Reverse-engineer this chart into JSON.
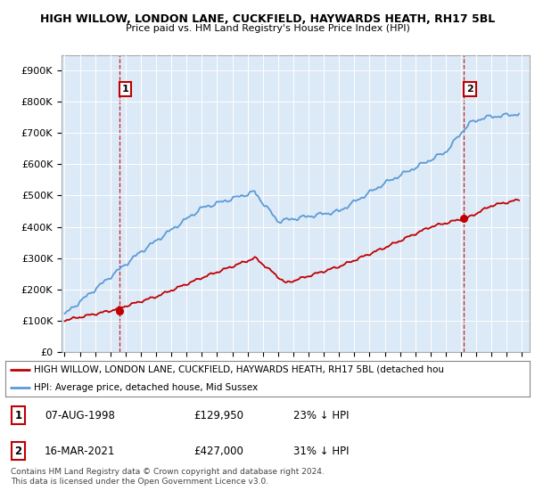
{
  "title_line1": "HIGH WILLOW, LONDON LANE, CUCKFIELD, HAYWARDS HEATH, RH17 5BL",
  "title_line2": "Price paid vs. HM Land Registry's House Price Index (HPI)",
  "ylim": [
    0,
    950000
  ],
  "yticks": [
    0,
    100000,
    200000,
    300000,
    400000,
    500000,
    600000,
    700000,
    800000,
    900000
  ],
  "ytick_labels": [
    "£0",
    "£100K",
    "£200K",
    "£300K",
    "£400K",
    "£500K",
    "£600K",
    "£700K",
    "£800K",
    "£900K"
  ],
  "sale1_x": 1998.6,
  "sale1_price": 129950,
  "sale2_x": 2021.2,
  "sale2_price": 427000,
  "hpi_color": "#5b9bd5",
  "price_color": "#c00000",
  "dashed_color": "#c00000",
  "plot_bg_color": "#dce9f7",
  "legend_text1": "HIGH WILLOW, LONDON LANE, CUCKFIELD, HAYWARDS HEATH, RH17 5BL (detached hou",
  "legend_text2": "HPI: Average price, detached house, Mid Sussex",
  "footnote": "Contains HM Land Registry data © Crown copyright and database right 2024.\nThis data is licensed under the Open Government Licence v3.0."
}
